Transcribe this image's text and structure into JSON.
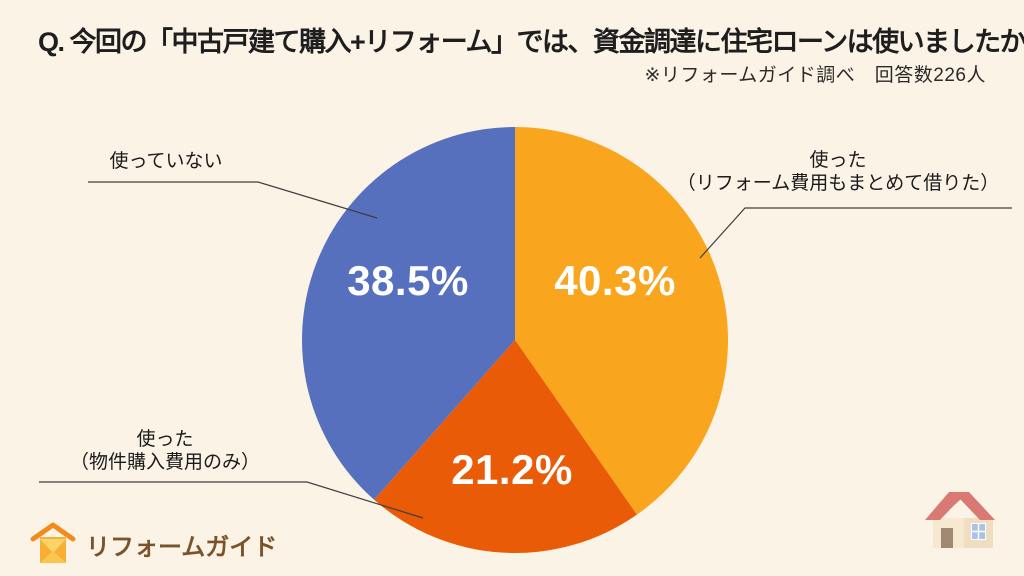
{
  "header": {
    "title": "Q. 今回の「中古戸建て購入+リフォーム」では、資金調達に住宅ローンは使いましたか？",
    "note": "※リフォームガイド調べ　回答数226人",
    "respondents": "226"
  },
  "chart_data": {
    "type": "pie",
    "unit": "%",
    "start_angle_deg": 0,
    "direction": "clockwise",
    "slices": [
      {
        "label": "使った（リフォーム費用もまとめて借りた）",
        "value": 40.3,
        "display": "40.3%",
        "color": "#F9A51E"
      },
      {
        "label": "使った（物件購入費用のみ）",
        "value": 21.2,
        "display": "21.2%",
        "color": "#E95B06"
      },
      {
        "label": "使っていない",
        "value": 38.5,
        "display": "38.5%",
        "color": "#5670BE"
      }
    ]
  },
  "callouts": {
    "not_used": {
      "text": "使っていない"
    },
    "used_full": {
      "line1": "使った",
      "line2": "（リフォーム費用もまとめて借りた）"
    },
    "used_property": {
      "line1": "使った",
      "line2": "（物件購入費用のみ）"
    }
  },
  "footer": {
    "logo_text": "リフォームガイド"
  },
  "colors": {
    "background": "#FCF3E7",
    "title_text": "#1E1E1E",
    "leader_line": "#3F3F3F",
    "logo_text": "#7A5428"
  }
}
